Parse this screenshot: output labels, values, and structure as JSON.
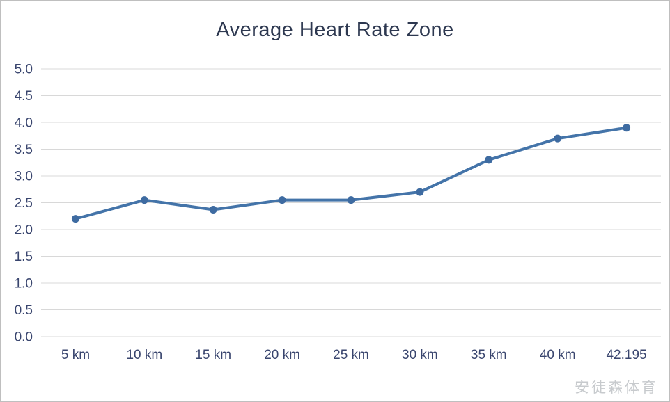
{
  "title": "Average Heart Rate Zone",
  "watermark": "安徒森体育",
  "chart_data": {
    "type": "line",
    "title": "Average Heart Rate Zone",
    "categories": [
      "5 km",
      "10 km",
      "15 km",
      "20 km",
      "25 km",
      "30 km",
      "35 km",
      "40 km",
      "42.195"
    ],
    "values": [
      2.2,
      2.55,
      2.37,
      2.55,
      2.55,
      2.7,
      3.3,
      3.7,
      3.9
    ],
    "xlabel": "",
    "ylabel": "",
    "ylim": [
      0,
      5
    ],
    "ytick_step": 0.5,
    "ytick_labels": [
      "0.0",
      "0.5",
      "1.0",
      "1.5",
      "2.0",
      "2.5",
      "3.0",
      "3.5",
      "4.0",
      "4.5",
      "5.0"
    ],
    "grid": true,
    "legend_position": "none",
    "colors": {
      "line": "#4474a9",
      "marker": "#3e6ba1",
      "grid": "#d8d8d8",
      "tick_text": "#39456e",
      "title_text": "#2d3850",
      "background": "#ffffff"
    }
  }
}
